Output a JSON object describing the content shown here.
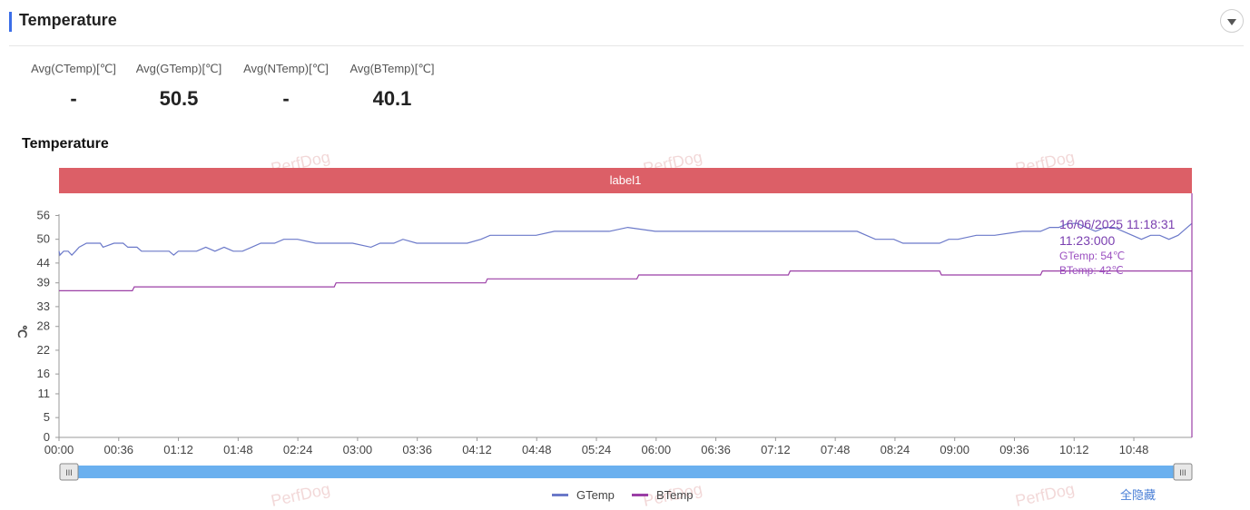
{
  "header": {
    "title": "Temperature"
  },
  "stats": [
    {
      "label": "Avg(CTemp)[℃]",
      "value": "-"
    },
    {
      "label": "Avg(GTemp)[℃]",
      "value": "50.5"
    },
    {
      "label": "Avg(NTemp)[℃]",
      "value": "-"
    },
    {
      "label": "Avg(BTemp)[℃]",
      "value": "40.1"
    }
  ],
  "chart_title": "Temperature",
  "watermark": "PerfDog",
  "hide_all_label": "全隐藏",
  "chart_data": {
    "type": "line",
    "label_band": "label1",
    "ylabel": "℃",
    "y_ticks": [
      0,
      5,
      11,
      16,
      22,
      28,
      33,
      39,
      44,
      50,
      56
    ],
    "ylim": [
      0,
      60
    ],
    "x_ticks": [
      "00:00",
      "00:36",
      "01:12",
      "01:48",
      "02:24",
      "03:00",
      "03:36",
      "04:12",
      "04:48",
      "05:24",
      "06:00",
      "06:36",
      "07:12",
      "07:48",
      "08:24",
      "09:00",
      "09:36",
      "10:12",
      "10:48"
    ],
    "x_range_minutes": [
      0,
      683
    ],
    "series": [
      {
        "name": "GTemp",
        "color": "#6b79c9",
        "points": [
          [
            0,
            47
          ],
          [
            1,
            46
          ],
          [
            5,
            47
          ],
          [
            10,
            47
          ],
          [
            14,
            46
          ],
          [
            18,
            47
          ],
          [
            22,
            48
          ],
          [
            30,
            49
          ],
          [
            45,
            49
          ],
          [
            48,
            48
          ],
          [
            60,
            49
          ],
          [
            70,
            49
          ],
          [
            75,
            48
          ],
          [
            85,
            48
          ],
          [
            90,
            47
          ],
          [
            100,
            47
          ],
          [
            120,
            47
          ],
          [
            125,
            46
          ],
          [
            130,
            47
          ],
          [
            140,
            47
          ],
          [
            150,
            47
          ],
          [
            160,
            48
          ],
          [
            170,
            47
          ],
          [
            180,
            48
          ],
          [
            190,
            47
          ],
          [
            200,
            47
          ],
          [
            210,
            48
          ],
          [
            220,
            49
          ],
          [
            235,
            49
          ],
          [
            245,
            50
          ],
          [
            260,
            50
          ],
          [
            280,
            49
          ],
          [
            300,
            49
          ],
          [
            320,
            49
          ],
          [
            340,
            48
          ],
          [
            350,
            49
          ],
          [
            365,
            49
          ],
          [
            375,
            50
          ],
          [
            390,
            49
          ],
          [
            420,
            49
          ],
          [
            445,
            49
          ],
          [
            460,
            50
          ],
          [
            470,
            51
          ],
          [
            490,
            51
          ],
          [
            520,
            51
          ],
          [
            540,
            52
          ],
          [
            570,
            52
          ],
          [
            600,
            52
          ],
          [
            620,
            53
          ],
          [
            650,
            52
          ],
          [
            700,
            52
          ],
          [
            730,
            52
          ],
          [
            760,
            52
          ],
          [
            790,
            52
          ],
          [
            820,
            52
          ],
          [
            850,
            52
          ],
          [
            870,
            52
          ],
          [
            880,
            51
          ],
          [
            890,
            50
          ],
          [
            910,
            50
          ],
          [
            920,
            49
          ],
          [
            940,
            49
          ],
          [
            960,
            49
          ],
          [
            970,
            50
          ],
          [
            980,
            50
          ],
          [
            1000,
            51
          ],
          [
            1020,
            51
          ],
          [
            1050,
            52
          ],
          [
            1070,
            52
          ],
          [
            1080,
            53
          ],
          [
            1090,
            53
          ],
          [
            1100,
            54
          ],
          [
            1110,
            54
          ],
          [
            1120,
            53
          ],
          [
            1130,
            52
          ],
          [
            1140,
            53
          ],
          [
            1150,
            53
          ],
          [
            1160,
            52
          ],
          [
            1170,
            51
          ],
          [
            1180,
            50
          ],
          [
            1190,
            51
          ],
          [
            1200,
            51
          ],
          [
            1210,
            50
          ],
          [
            1220,
            51
          ],
          [
            1225,
            52
          ],
          [
            1230,
            53
          ],
          [
            1235,
            54
          ]
        ]
      },
      {
        "name": "BTemp",
        "color": "#9b3fa6",
        "points": [
          [
            0,
            37
          ],
          [
            80,
            37
          ],
          [
            82,
            38
          ],
          [
            300,
            38
          ],
          [
            302,
            39
          ],
          [
            465,
            39
          ],
          [
            467,
            40
          ],
          [
            630,
            40
          ],
          [
            632,
            41
          ],
          [
            795,
            41
          ],
          [
            797,
            42
          ],
          [
            960,
            42
          ],
          [
            962,
            41
          ],
          [
            1070,
            41
          ],
          [
            1072,
            42
          ],
          [
            1235,
            42
          ]
        ]
      }
    ],
    "tooltip": {
      "datetime": "16/06/2025 11:18:31",
      "time": "11:23:000",
      "lines": [
        "GTemp: 54℃",
        "BTemp: 42℃"
      ]
    },
    "legend": [
      "GTemp",
      "BTemp"
    ]
  }
}
